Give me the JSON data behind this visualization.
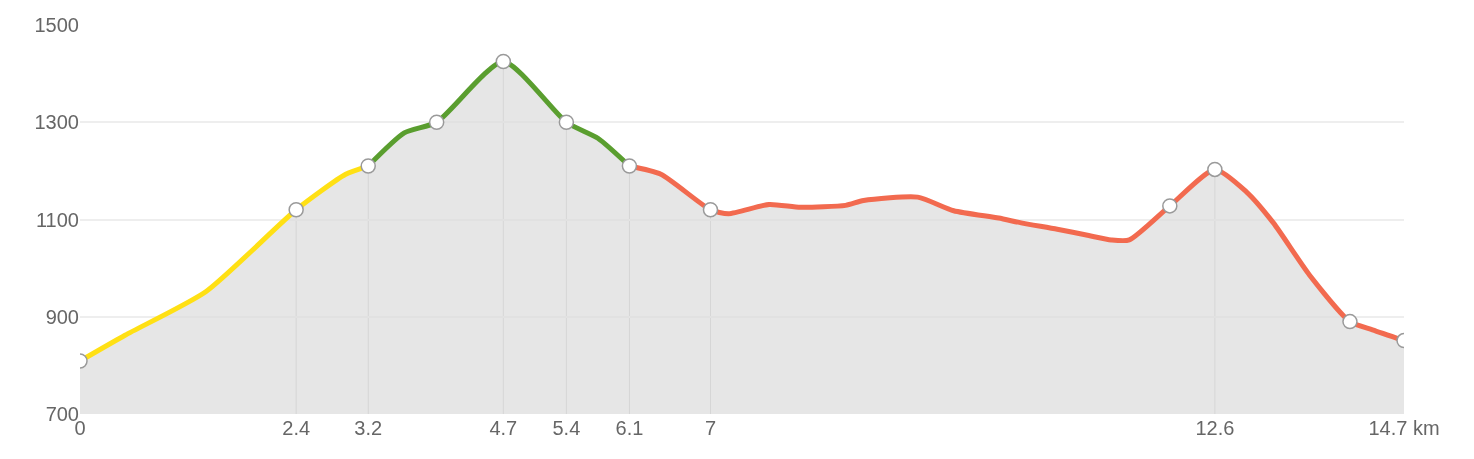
{
  "chart_data": {
    "type": "area",
    "series": [
      {
        "color": "#ffe014",
        "x": [
          0,
          0.5,
          1.4,
          2.4,
          2.95,
          3.2
        ],
        "values": [
          809,
          862,
          952,
          1120,
          1193,
          1210
        ]
      },
      {
        "color": "#5a9e2f",
        "x": [
          3.2,
          3.6,
          3.96,
          4.7,
          5.4,
          5.75,
          6.1
        ],
        "values": [
          1210,
          1278,
          1300,
          1425,
          1300,
          1267,
          1210
        ]
      },
      {
        "color": "#f26a4f",
        "x": [
          6.1,
          6.45,
          7,
          7.2,
          7.65,
          8.0,
          8.5,
          8.7,
          9.3,
          9.7,
          10.2,
          10.45,
          10.85,
          11.2,
          11.45,
          11.65,
          12.1,
          12.6,
          12.95,
          13.25,
          13.65,
          14.1,
          14.35,
          14.7
        ],
        "values": [
          1210,
          1193,
          1120,
          1112,
          1131,
          1125,
          1129,
          1139,
          1146,
          1118,
          1103,
          1093,
          1080,
          1067,
          1058,
          1058,
          1128,
          1203,
          1157,
          1093,
          986,
          890,
          873,
          851
        ]
      },
      {
        "type": "scatter",
        "marker": "circle",
        "color": "#ffffff",
        "x": [
          0,
          2.4,
          3.2,
          3.96,
          4.7,
          5.4,
          6.1,
          7,
          12.1,
          12.6,
          14.1,
          14.7
        ],
        "values": [
          809,
          1120,
          1210,
          1300,
          1425,
          1300,
          1210,
          1120,
          1128,
          1203,
          890,
          851
        ]
      }
    ],
    "xlim": [
      0,
      14.7
    ],
    "xticks": [
      0,
      2.4,
      3.2,
      4.7,
      5.4,
      6.1,
      7,
      12.6,
      {
        "value": 14.7,
        "label": "14.7 km"
      }
    ],
    "ylim": [
      700,
      1500
    ],
    "yticks": [
      700,
      900,
      1100,
      1300,
      1500
    ],
    "grid": "y",
    "ref_lines": [
      {
        "axis": "x",
        "value": 2.4,
        "color": "#c8c8c8"
      },
      {
        "axis": "x",
        "value": 3.2,
        "color": "#c8c8c8"
      },
      {
        "axis": "x",
        "value": 4.7,
        "color": "#c8c8c8"
      },
      {
        "axis": "x",
        "value": 5.4,
        "color": "#c8c8c8"
      },
      {
        "axis": "x",
        "value": 6.1,
        "color": "#c8c8c8"
      },
      {
        "axis": "x",
        "value": 7,
        "color": "#c8c8c8"
      },
      {
        "axis": "x",
        "value": 12.6,
        "color": "#c8c8c8"
      }
    ]
  }
}
